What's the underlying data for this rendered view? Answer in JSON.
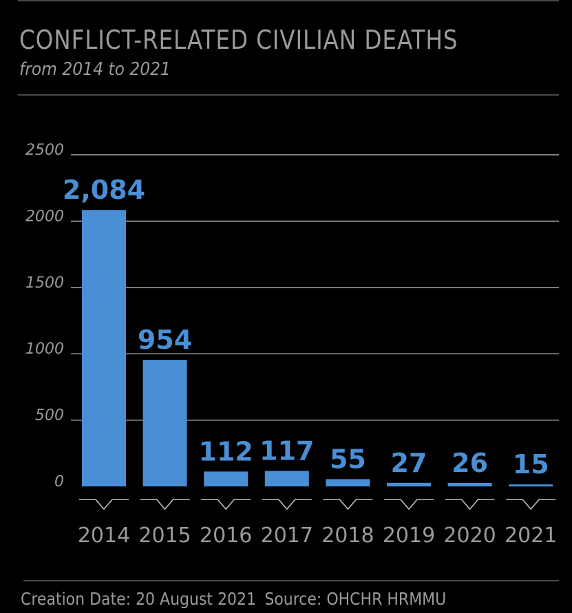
{
  "header": {
    "title": "CONFLICT-RELATED CIVILIAN DEATHS",
    "subtitle": "from 2014 to 2021"
  },
  "footer": {
    "creation_date": "Creation Date: 20 August 2021",
    "source": "Source: OHCHR HRMMU"
  },
  "colors": {
    "background": "#000000",
    "bar": "#4a8fd6",
    "value_label": "#4a8fd6",
    "gridline": "#cccccc",
    "text": "#9a9a9a"
  },
  "chart_data": {
    "type": "bar",
    "title": "CONFLICT-RELATED CIVILIAN DEATHS",
    "subtitle": "from 2014 to 2021",
    "categories": [
      "2014",
      "2015",
      "2016",
      "2017",
      "2018",
      "2019",
      "2020",
      "2021"
    ],
    "values": [
      2084,
      954,
      112,
      117,
      55,
      27,
      26,
      15
    ],
    "value_labels": [
      "2,084",
      "954",
      "112",
      "117",
      "55",
      "27",
      "26",
      "15"
    ],
    "y_ticks": [
      "2500",
      "2000",
      "1500",
      "1000",
      "500",
      "0"
    ],
    "ylim": [
      0,
      2500
    ],
    "grid": true,
    "xlabel": "",
    "ylabel": ""
  }
}
